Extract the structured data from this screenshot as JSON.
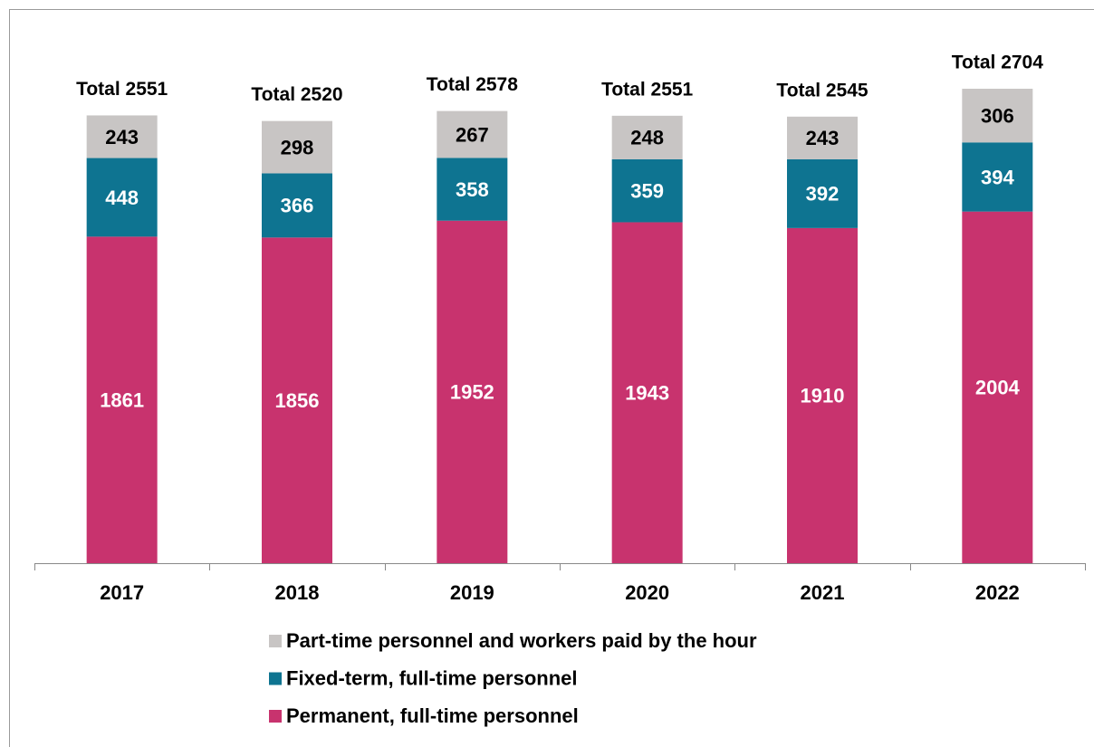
{
  "chart_data": {
    "type": "stacked_bar",
    "categories": [
      "2017",
      "2018",
      "2019",
      "2020",
      "2021",
      "2022"
    ],
    "series": [
      {
        "name": "Permanent, full-time personnel",
        "color": "#c8336e",
        "label_color": "#ffffff",
        "values": [
          1861,
          1856,
          1952,
          1943,
          1910,
          2004
        ]
      },
      {
        "name": "Fixed-term, full-time personnel",
        "color": "#0e7491",
        "label_color": "#ffffff",
        "values": [
          448,
          366,
          358,
          359,
          392,
          394
        ]
      },
      {
        "name": "Part-time personnel and workers paid by the hour",
        "color": "#c8c5c4",
        "label_color": "#000000",
        "values": [
          243,
          298,
          267,
          248,
          243,
          306
        ]
      }
    ],
    "annotations": [
      "Total 2551",
      "Total 2520",
      "Total 2578",
      "Total 2551",
      "Total 2545",
      "Total 2704"
    ]
  }
}
